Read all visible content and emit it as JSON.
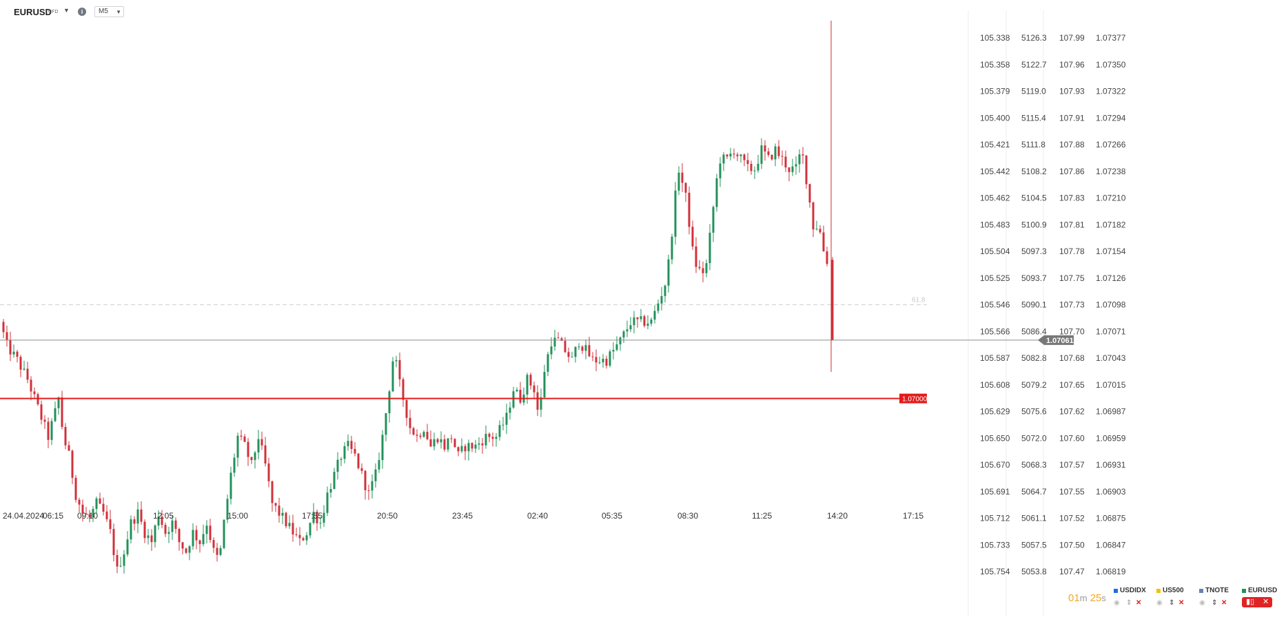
{
  "header": {
    "symbol": "EURUSD",
    "type": "CFD",
    "timeframe": "M5"
  },
  "countdown": {
    "minutes": "01",
    "m": "m",
    "seconds": "25",
    "s": "s"
  },
  "colors": {
    "up": "#22915a",
    "down": "#d0313a",
    "level": "#e21b1b",
    "price_line": "#8c8c8c",
    "countdown": "#f5a623"
  },
  "legend": [
    {
      "name": "USDIDX",
      "color": "#1f6fe0"
    },
    {
      "name": "US500",
      "color": "#f2c200"
    },
    {
      "name": "TNOTE",
      "color": "#6a7fb2"
    },
    {
      "name": "EURUSD",
      "color": "#22915a"
    }
  ],
  "icons": {
    "symbol_caret": "chevron-down-icon",
    "info": "info-icon",
    "eye": "eye-icon",
    "sort": "sort-icon",
    "remove": "close-icon",
    "chart_type": "candlestick-icon"
  },
  "chart_data": {
    "type": "candlestick",
    "symbol": "EURUSD",
    "timeframe": "M5",
    "price_axis": [
      "1.07377",
      "1.07350",
      "1.07322",
      "1.07294",
      "1.07266",
      "1.07238",
      "1.07210",
      "1.07182",
      "1.07154",
      "1.07126",
      "1.07098",
      "1.07071",
      "1.07043",
      "1.07015",
      "1.06987",
      "1.06959",
      "1.06931",
      "1.06903",
      "1.06875",
      "1.06847",
      "1.06819"
    ],
    "usdidx_axis": [
      "105.338",
      "105.358",
      "105.379",
      "105.400",
      "105.421",
      "105.442",
      "105.462",
      "105.483",
      "105.504",
      "105.525",
      "105.546",
      "105.566",
      "105.587",
      "105.608",
      "105.629",
      "105.650",
      "105.670",
      "105.691",
      "105.712",
      "105.733",
      "105.754"
    ],
    "us500_axis": [
      "5126.3",
      "5122.7",
      "5119.0",
      "5115.4",
      "5111.8",
      "5108.2",
      "5104.5",
      "5100.9",
      "5097.3",
      "5093.7",
      "5090.1",
      "5086.4",
      "5082.8",
      "5079.2",
      "5075.6",
      "5072.0",
      "5068.3",
      "5064.7",
      "5061.1",
      "5057.5",
      "5053.8"
    ],
    "tnote_axis": [
      "107.99",
      "107.96",
      "107.93",
      "107.91",
      "107.88",
      "107.86",
      "107.83",
      "107.81",
      "107.78",
      "107.75",
      "107.73",
      "107.70",
      "107.68",
      "107.65",
      "107.62",
      "107.60",
      "107.57",
      "107.55",
      "107.52",
      "107.50",
      "107.47"
    ],
    "time_axis": [
      "24.04.2024",
      "06:15",
      "09:10",
      "12:05",
      "15:00",
      "17:55",
      "20:50",
      "23:45",
      "02:40",
      "05:35",
      "08:30",
      "11:25",
      "14:20",
      "17:15"
    ],
    "y_range": [
      1.06805,
      1.07395
    ],
    "current_price": "1.07061",
    "horizontal_level": "1.07000",
    "fib_label": "61.8",
    "fib_level": 1.07098,
    "path": [
      [
        0,
        1.0708
      ],
      [
        10,
        1.07055
      ],
      [
        25,
        1.0704
      ],
      [
        40,
        1.0702
      ],
      [
        55,
        1.0699
      ],
      [
        70,
        1.0696
      ],
      [
        78,
        1.0698
      ],
      [
        85,
        1.07
      ],
      [
        92,
        1.0696
      ],
      [
        100,
        1.0694
      ],
      [
        110,
        1.069
      ],
      [
        120,
        1.0688
      ],
      [
        130,
        1.06875
      ],
      [
        140,
        1.0689
      ],
      [
        150,
        1.0688
      ],
      [
        160,
        1.0686
      ],
      [
        170,
        1.0682
      ],
      [
        180,
        1.0684
      ],
      [
        190,
        1.0687
      ],
      [
        200,
        1.0688
      ],
      [
        210,
        1.0686
      ],
      [
        220,
        1.0685
      ],
      [
        230,
        1.0688
      ],
      [
        240,
        1.0686
      ],
      [
        250,
        1.0687
      ],
      [
        260,
        1.0685
      ],
      [
        270,
        1.0684
      ],
      [
        280,
        1.0686
      ],
      [
        290,
        1.0685
      ],
      [
        300,
        1.0687
      ],
      [
        310,
        1.0684
      ],
      [
        318,
        1.0683
      ],
      [
        325,
        1.0687
      ],
      [
        335,
        1.0692
      ],
      [
        345,
        1.0696
      ],
      [
        355,
        1.0695
      ],
      [
        365,
        1.0693
      ],
      [
        375,
        1.0696
      ],
      [
        385,
        1.0693
      ],
      [
        395,
        1.0689
      ],
      [
        405,
        1.0688
      ],
      [
        415,
        1.0687
      ],
      [
        425,
        1.0686
      ],
      [
        435,
        1.0685
      ],
      [
        445,
        1.0686
      ],
      [
        455,
        1.0688
      ],
      [
        465,
        1.0687
      ],
      [
        475,
        1.069
      ],
      [
        485,
        1.0692
      ],
      [
        495,
        1.0694
      ],
      [
        505,
        1.0695
      ],
      [
        515,
        1.0694
      ],
      [
        525,
        1.0692
      ],
      [
        535,
        1.069
      ],
      [
        545,
        1.0692
      ],
      [
        555,
        1.0696
      ],
      [
        563,
        1.07
      ],
      [
        568,
        1.0703
      ],
      [
        572,
        1.0705
      ],
      [
        578,
        1.0702
      ],
      [
        585,
        1.07
      ],
      [
        595,
        1.0697
      ],
      [
        605,
        1.0696
      ],
      [
        615,
        1.0697
      ],
      [
        625,
        1.0695
      ],
      [
        635,
        1.0696
      ],
      [
        645,
        1.0695
      ],
      [
        655,
        1.0696
      ],
      [
        665,
        1.0694
      ],
      [
        675,
        1.0695
      ],
      [
        690,
        1.0695
      ],
      [
        705,
        1.0696
      ],
      [
        720,
        1.0696
      ],
      [
        735,
        1.0698
      ],
      [
        745,
        1.0701
      ],
      [
        755,
        1.07
      ],
      [
        765,
        1.0702
      ],
      [
        775,
        1.0701
      ],
      [
        782,
        1.0698
      ],
      [
        790,
        1.0703
      ],
      [
        800,
        1.0706
      ],
      [
        810,
        1.0706
      ],
      [
        820,
        1.0705
      ],
      [
        830,
        1.0704
      ],
      [
        840,
        1.0706
      ],
      [
        850,
        1.0705
      ],
      [
        860,
        1.0704
      ],
      [
        870,
        1.0704
      ],
      [
        880,
        1.0704
      ],
      [
        890,
        1.0705
      ],
      [
        900,
        1.0706
      ],
      [
        915,
        1.0708
      ],
      [
        930,
        1.0708
      ],
      [
        945,
        1.0708
      ],
      [
        955,
        1.071
      ],
      [
        965,
        1.0712
      ],
      [
        972,
        1.0715
      ],
      [
        978,
        1.072
      ],
      [
        985,
        1.0724
      ],
      [
        992,
        1.0722
      ],
      [
        998,
        1.072
      ],
      [
        1003,
        1.0716
      ],
      [
        1010,
        1.0714
      ],
      [
        1018,
        1.0713
      ],
      [
        1025,
        1.0714
      ],
      [
        1032,
        1.0718
      ],
      [
        1038,
        1.0722
      ],
      [
        1045,
        1.0725
      ],
      [
        1055,
        1.0725
      ],
      [
        1065,
        1.0726
      ],
      [
        1075,
        1.0725
      ],
      [
        1085,
        1.0724
      ],
      [
        1095,
        1.0724
      ],
      [
        1105,
        1.0726
      ],
      [
        1115,
        1.0725
      ],
      [
        1125,
        1.0726
      ],
      [
        1135,
        1.0725
      ],
      [
        1145,
        1.0724
      ],
      [
        1155,
        1.0724
      ],
      [
        1163,
        1.0726
      ],
      [
        1168,
        1.0724
      ],
      [
        1174,
        1.0721
      ],
      [
        1180,
        1.0718
      ],
      [
        1186,
        1.0718
      ],
      [
        1192,
        1.0717
      ],
      [
        1198,
        1.0714
      ],
      [
        1203,
        1.0715
      ]
    ],
    "last_candle": {
      "open": 1.07145,
      "close": 1.07061,
      "low": 1.07061
    }
  }
}
